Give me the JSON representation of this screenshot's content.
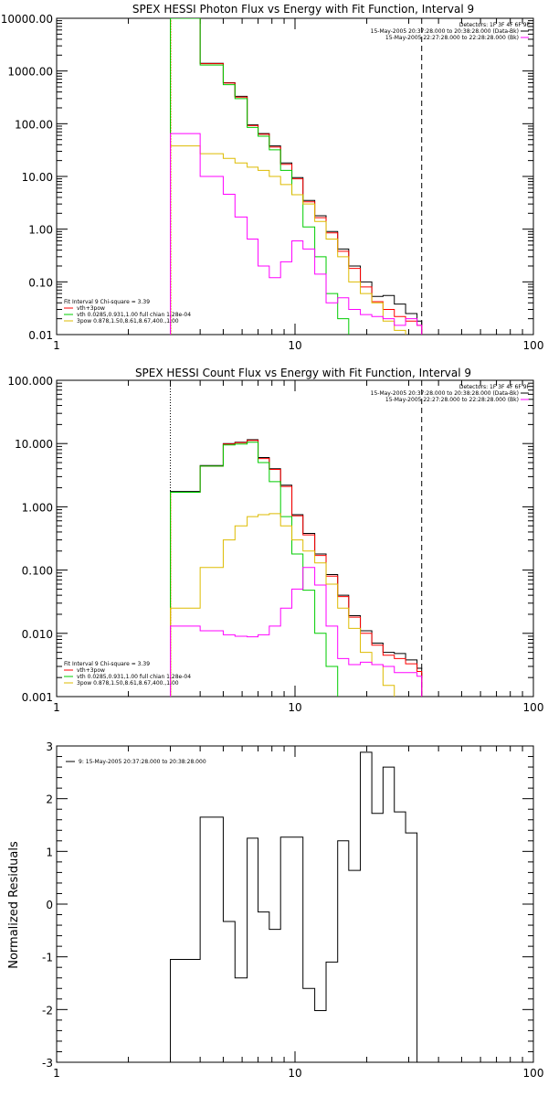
{
  "chart_data": [
    {
      "type": "line",
      "title": "SPEX HESSI Photon Flux vs Energy with Fit Function, Interval 9",
      "xlabel": "",
      "ylabel": "",
      "xscale": "log",
      "yscale": "log",
      "xlim": [
        1,
        100
      ],
      "ylim": [
        0.01,
        10000
      ],
      "xticks": [
        {
          "v": 1,
          "label": "1"
        },
        {
          "v": 10,
          "label": "10"
        },
        {
          "v": 100,
          "label": "100"
        }
      ],
      "yticks": [
        {
          "v": 10000,
          "label": "10000.00"
        },
        {
          "v": 1000,
          "label": "1000.00"
        },
        {
          "v": 100,
          "label": "100.00"
        },
        {
          "v": 10,
          "label": "10.00"
        },
        {
          "v": 1,
          "label": "1.00"
        },
        {
          "v": 0.1,
          "label": "0.10"
        },
        {
          "v": 0.01,
          "label": "0.01"
        }
      ],
      "dotted_x": 3.0,
      "dashed_x": 34.0,
      "orange_x": 3.0,
      "legend_top_right": [
        "Detectors: 1F 3F 4F 6F 9F",
        "15-May-2005 20:37:28.000 to 20:38:28.000 (Data-Bk)",
        "15-May-2005 22:27:28.000 to 22:28:28.000 (Bk)"
      ],
      "legend_top_right_colors": [
        "",
        "#000000",
        "#ff00ff"
      ],
      "legend_bottom_left": [
        "Fit Interval 9   Chi-square = 3.39",
        "vth+3pow",
        "vth 0.0285,0.931,1.00  full chian 1.28e-04",
        "3pow 0.878,1.50,8.61,8.67,400.,1.00"
      ],
      "legend_bottom_left_colors": [
        "",
        "#ff0000",
        "#00cc00",
        "#ddbb00"
      ],
      "series": [
        {
          "name": "15-May-2005 20:37:28.000 to 20:38:28.000 (Data-Bk)",
          "color": "#000000",
          "edges": [
            3,
            3.5,
            4,
            4.5,
            5,
            5.6,
            6.3,
            7,
            7.8,
            8.7,
            9.7,
            10.8,
            12.1,
            13.5,
            15.1,
            16.8,
            18.8,
            21,
            23.4,
            26.1,
            29.1,
            32.5,
            34
          ],
          "values": [
            10000,
            10000,
            1400,
            1400,
            600,
            330,
            95,
            65,
            38,
            18,
            9.5,
            3.5,
            1.8,
            0.9,
            0.42,
            0.2,
            0.1,
            0.053,
            0.055,
            0.038,
            0.025,
            0.018
          ]
        },
        {
          "name": "vth+3pow",
          "color": "#ff0000",
          "edges": [
            3,
            3.5,
            4,
            4.5,
            5,
            5.6,
            6.3,
            7,
            7.8,
            8.7,
            9.7,
            10.8,
            12.1,
            13.5,
            15.1,
            16.8,
            18.8,
            21,
            23.4,
            26.1,
            29.1,
            32.5,
            34
          ],
          "values": [
            10000,
            10000,
            1380,
            1380,
            590,
            320,
            92,
            63,
            36,
            17,
            9,
            3.3,
            1.65,
            0.85,
            0.38,
            0.18,
            0.08,
            0.042,
            0.03,
            0.022,
            0.018,
            0.015
          ]
        },
        {
          "name": "vth 0.0285,0.931,1.00  full chian 1.28e-04",
          "color": "#00cc00",
          "edges": [
            3,
            3.5,
            4,
            4.5,
            5,
            5.6,
            6.3,
            7,
            7.8,
            8.7,
            9.7,
            10.8,
            12.1,
            13.5,
            15.1,
            16.8
          ],
          "values": [
            10000,
            10000,
            1300,
            1300,
            550,
            300,
            85,
            58,
            32,
            13,
            4.5,
            1.1,
            0.3,
            0.06,
            0.02
          ]
        },
        {
          "name": "3pow 0.878,1.50,8.61,8.67,400.,1.00",
          "color": "#ddbb00",
          "edges": [
            3,
            3.5,
            4,
            4.5,
            5,
            5.6,
            6.3,
            7,
            7.8,
            8.7,
            9.7,
            10.8,
            12.1,
            13.5,
            15.1,
            16.8,
            18.8,
            21,
            23.4,
            26.1,
            29.1
          ],
          "values": [
            38,
            38,
            27,
            27,
            22,
            18,
            15,
            13,
            10,
            7,
            4.5,
            3,
            1.4,
            0.65,
            0.3,
            0.1,
            0.06,
            0.04,
            0.018,
            0.012
          ]
        },
        {
          "name": "15-May-2005 22:27:28.000 to 22:28:28.000 (Bk)",
          "color": "#ff00ff",
          "edges": [
            3,
            3.5,
            4,
            4.5,
            5,
            5.6,
            6.3,
            7,
            7.8,
            8.7,
            9.7,
            10.8,
            12.1,
            13.5,
            15.1,
            16.8,
            18.8,
            21,
            23.4,
            26.1,
            29.1,
            32.5,
            34
          ],
          "values": [
            65,
            65,
            10,
            10,
            4.6,
            1.7,
            0.65,
            0.2,
            0.12,
            0.24,
            0.6,
            0.42,
            0.14,
            0.04,
            0.05,
            0.03,
            0.024,
            0.022,
            0.02,
            0.015,
            0.02,
            0.015
          ]
        }
      ]
    },
    {
      "type": "line",
      "title": "SPEX HESSI Count Flux vs Energy with Fit Function, Interval 9",
      "xlabel": "",
      "ylabel": "",
      "xscale": "log",
      "yscale": "log",
      "xlim": [
        1,
        100
      ],
      "ylim": [
        0.001,
        100
      ],
      "xticks": [
        {
          "v": 1,
          "label": "1"
        },
        {
          "v": 10,
          "label": "10"
        },
        {
          "v": 100,
          "label": "100"
        }
      ],
      "yticks": [
        {
          "v": 100,
          "label": "100.000"
        },
        {
          "v": 10,
          "label": "10.000"
        },
        {
          "v": 1,
          "label": "1.000"
        },
        {
          "v": 0.1,
          "label": "0.100"
        },
        {
          "v": 0.01,
          "label": "0.010"
        },
        {
          "v": 0.001,
          "label": "0.001"
        }
      ],
      "dotted_x": 3.0,
      "dashed_x": 34.0,
      "orange_x": 3.0,
      "legend_top_right": [
        "Detectors: 1F 3F 4F 6F 9F",
        "15-May-2005 20:37:28.000 to 20:38:28.000 (Data-Bk)",
        "15-May-2005 22:27:28.000 to 22:28:28.000 (Bk)"
      ],
      "legend_top_right_colors": [
        "",
        "#000000",
        "#ff00ff"
      ],
      "legend_bottom_left": [
        "Fit Interval 9   Chi-square = 3.39",
        "vth+3pow",
        "vth 0.0285,0.931,1.00  full chian 1.28e-04",
        "3pow 0.878,1.50,8.61,8.67,400.,1.00"
      ],
      "legend_bottom_left_colors": [
        "",
        "#ff0000",
        "#00cc00",
        "#ddbb00"
      ],
      "series": [
        {
          "name": "15-May-2005 20:37:28.000 to 20:38:28.000 (Data-Bk)",
          "color": "#000000",
          "edges": [
            3,
            3.5,
            4,
            4.5,
            5,
            5.6,
            6.3,
            7,
            7.8,
            8.7,
            9.7,
            10.8,
            12.1,
            13.5,
            15.1,
            16.8,
            18.8,
            21,
            23.4,
            26.1,
            29.1,
            32.5,
            34
          ],
          "values": [
            1.75,
            1.75,
            4.5,
            4.5,
            10,
            10.5,
            11.5,
            6,
            4,
            2.2,
            0.75,
            0.38,
            0.18,
            0.085,
            0.04,
            0.019,
            0.011,
            0.007,
            0.005,
            0.0048,
            0.0038,
            0.0028
          ]
        },
        {
          "name": "vth+3pow",
          "color": "#ff0000",
          "edges": [
            3,
            3.5,
            4,
            4.5,
            5,
            5.6,
            6.3,
            7,
            7.8,
            8.7,
            9.7,
            10.8,
            12.1,
            13.5,
            15.1,
            16.8,
            18.8,
            21,
            23.4,
            26.1,
            29.1,
            32.5,
            34
          ],
          "values": [
            1.7,
            1.7,
            4.4,
            4.4,
            9.8,
            10.3,
            11.2,
            5.8,
            3.9,
            2.1,
            0.72,
            0.36,
            0.17,
            0.08,
            0.038,
            0.018,
            0.01,
            0.0065,
            0.0045,
            0.004,
            0.0033,
            0.0025
          ]
        },
        {
          "name": "vth 0.0285,0.931,1.00  full chian 1.28e-04",
          "color": "#00cc00",
          "edges": [
            3,
            3.5,
            4,
            4.5,
            5,
            5.6,
            6.3,
            7,
            7.8,
            8.7,
            9.7,
            10.8,
            12.1,
            13.5,
            15.1
          ],
          "values": [
            1.7,
            1.7,
            4.4,
            4.4,
            9.5,
            9.8,
            10.5,
            5,
            2.5,
            0.7,
            0.18,
            0.048,
            0.01,
            0.003
          ]
        },
        {
          "name": "3pow 0.878,1.50,8.61,8.67,400.,1.00",
          "color": "#ddbb00",
          "edges": [
            3,
            3.5,
            4,
            4.5,
            5,
            5.6,
            6.3,
            7,
            7.8,
            8.7,
            9.7,
            10.8,
            12.1,
            13.5,
            15.1,
            16.8,
            18.8,
            21,
            23.4,
            26.1
          ],
          "values": [
            0.025,
            0.025,
            0.11,
            0.11,
            0.3,
            0.5,
            0.7,
            0.75,
            0.78,
            0.5,
            0.3,
            0.2,
            0.13,
            0.06,
            0.025,
            0.012,
            0.005,
            0.0032,
            0.0015
          ]
        },
        {
          "name": "15-May-2005 22:27:28.000 to 22:28:28.000 (Bk)",
          "color": "#ff00ff",
          "edges": [
            3,
            3.5,
            4,
            4.5,
            5,
            5.6,
            6.3,
            7,
            7.8,
            8.7,
            9.7,
            10.8,
            12.1,
            13.5,
            15.1,
            16.8,
            18.8,
            21,
            23.4,
            26.1,
            29.1,
            32.5,
            34
          ],
          "values": [
            0.013,
            0.013,
            0.011,
            0.011,
            0.0095,
            0.009,
            0.0088,
            0.0095,
            0.013,
            0.025,
            0.05,
            0.11,
            0.058,
            0.013,
            0.004,
            0.0032,
            0.0035,
            0.0032,
            0.003,
            0.0024,
            0.0024,
            0.0021
          ]
        }
      ]
    },
    {
      "type": "line",
      "title": "",
      "xlabel": "",
      "ylabel": "Normalized Residuals",
      "xscale": "log",
      "yscale": "linear",
      "xlim": [
        1,
        100
      ],
      "ylim": [
        -3,
        3
      ],
      "xticks": [
        {
          "v": 1,
          "label": "1"
        },
        {
          "v": 10,
          "label": "10"
        },
        {
          "v": 100,
          "label": "100"
        }
      ],
      "yticks": [
        {
          "v": 3,
          "label": "3"
        },
        {
          "v": 2,
          "label": "2"
        },
        {
          "v": 1,
          "label": "1"
        },
        {
          "v": 0,
          "label": "0"
        },
        {
          "v": -1,
          "label": "-1"
        },
        {
          "v": -2,
          "label": "-2"
        },
        {
          "v": -3,
          "label": "-3"
        }
      ],
      "legend_top_left": [
        "9: 15-May-2005 20:37:28.000 to 20:38:28.000"
      ],
      "legend_top_left_colors": [
        "#000000"
      ],
      "series": [
        {
          "name": "9: 15-May-2005 20:37:28.000 to 20:38:28.000",
          "color": "#000000",
          "edges": [
            3,
            3.5,
            4,
            4.5,
            5,
            5.6,
            6.3,
            7,
            7.8,
            8.7,
            9.7,
            10.8,
            12.1,
            13.5,
            15.1,
            16.8,
            18.8,
            21,
            23.4,
            26.1,
            29.1,
            32.5,
            34
          ],
          "values": [
            -1.05,
            -1.05,
            1.65,
            1.65,
            -0.33,
            -1.4,
            1.25,
            -0.15,
            -0.48,
            1.27,
            1.27,
            -1.6,
            -2.02,
            -1.1,
            1.2,
            0.64,
            2.88,
            1.72,
            2.6,
            1.75,
            1.35,
            -3
          ]
        }
      ]
    }
  ]
}
